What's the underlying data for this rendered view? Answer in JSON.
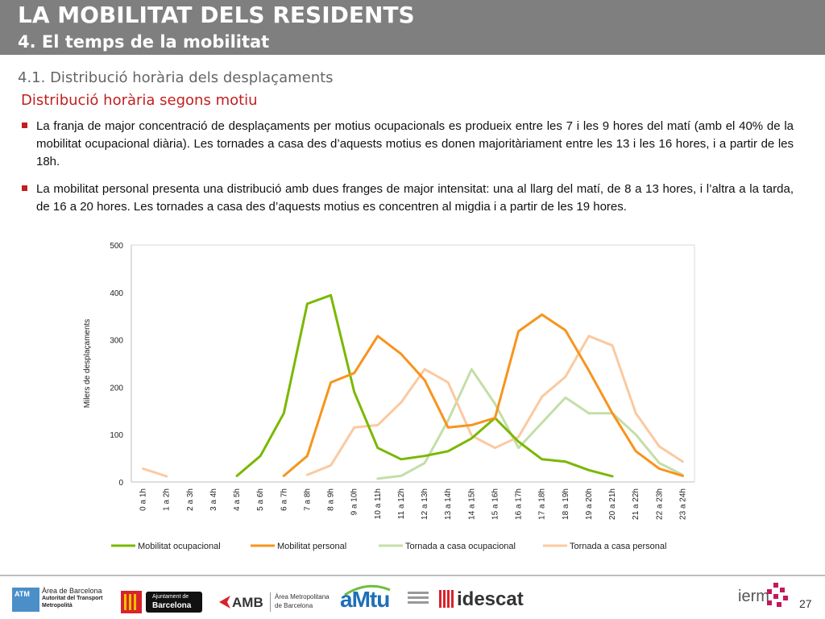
{
  "header": {
    "title": "LA MOBILITAT DELS RESIDENTS",
    "subtitle": "4. El temps de la mobilitat"
  },
  "section": {
    "title": "4.1. Distribució horària dels desplaçaments",
    "subtitle": "Distribució horària segons motiu"
  },
  "bullets": [
    "La franja de major concentració de desplaçaments per motius ocupacionals es produeix entre les 7 i les 9 hores del matí (amb el 40% de la mobilitat ocupacional diària). Les tornades a casa des d’aquests motius es donen majoritàriament entre les 13 i les 16 hores, i a partir de les 18h.",
    "La mobilitat personal presenta una distribució amb dues franges de major intensitat: una al llarg del matí, de 8 a 13 hores, i l’altra a la tarda, de 16 a 20 hores. Les tornades a casa des d’aquests motius es concentren al migdia i a partir de les 19 hores."
  ],
  "chart_data": {
    "type": "line",
    "title": "",
    "xlabel": "",
    "ylabel": "Milers de desplaçaments",
    "ylim": [
      0,
      500
    ],
    "yticks": [
      0,
      100,
      200,
      300,
      400,
      500
    ],
    "grid": false,
    "legend_position": "bottom",
    "categories": [
      "0 a 1h",
      "1 a 2h",
      "2 a 3h",
      "3 a 4h",
      "4 a 5h",
      "5 a 6h",
      "6 a 7h",
      "7 a 8h",
      "8 a 9h",
      "9 a 10h",
      "10 a 11h",
      "11 a 12h",
      "12 a 13h",
      "13 a 14h",
      "14 a 15h",
      "15 a 16h",
      "16 a 17h",
      "17 a 18h",
      "18 a 19h",
      "19 a 20h",
      "20 a 21h",
      "21 a 22h",
      "22 a 23h",
      "23 a 24h"
    ],
    "series": [
      {
        "name": "Mobilitat ocupacional",
        "color": "#7ab800",
        "values": [
          null,
          null,
          null,
          null,
          13,
          55,
          145,
          376,
          394,
          190,
          72,
          48,
          55,
          65,
          92,
          135,
          85,
          48,
          43,
          25,
          12,
          null,
          null,
          null
        ]
      },
      {
        "name": "Mobilitat personal",
        "color": "#f7941d",
        "values": [
          null,
          null,
          null,
          null,
          null,
          null,
          13,
          55,
          210,
          230,
          308,
          270,
          215,
          115,
          120,
          135,
          318,
          353,
          320,
          235,
          145,
          65,
          28,
          13
        ]
      },
      {
        "name": "Tornada a casa ocupacional",
        "color": "#c4dea8",
        "values": [
          null,
          null,
          null,
          null,
          null,
          null,
          null,
          null,
          null,
          null,
          7,
          13,
          40,
          130,
          238,
          165,
          72,
          125,
          178,
          145,
          145,
          100,
          40,
          15
        ]
      },
      {
        "name": "Tornada a casa personal",
        "color": "#fbc9a0",
        "values": [
          28,
          12,
          null,
          null,
          null,
          null,
          null,
          15,
          35,
          115,
          120,
          168,
          238,
          210,
          98,
          72,
          95,
          180,
          222,
          308,
          288,
          145,
          75,
          43
        ]
      }
    ]
  },
  "footer": {
    "atm_badge": "ATM",
    "atm_line1": "Àrea de Barcelona",
    "atm_line2": "Autoritat del Transport",
    "atm_line3": "Metropolità",
    "ajuntament_line1": "Ajuntament de",
    "ajuntament_line2": "Barcelona",
    "amb": "AMB",
    "amb_line1": "Àrea Metropolitana",
    "amb_line2": "de Barcelona",
    "amtu": "aMtu",
    "idescat": "idescat",
    "ierm": "ierm",
    "page_number": "27"
  }
}
